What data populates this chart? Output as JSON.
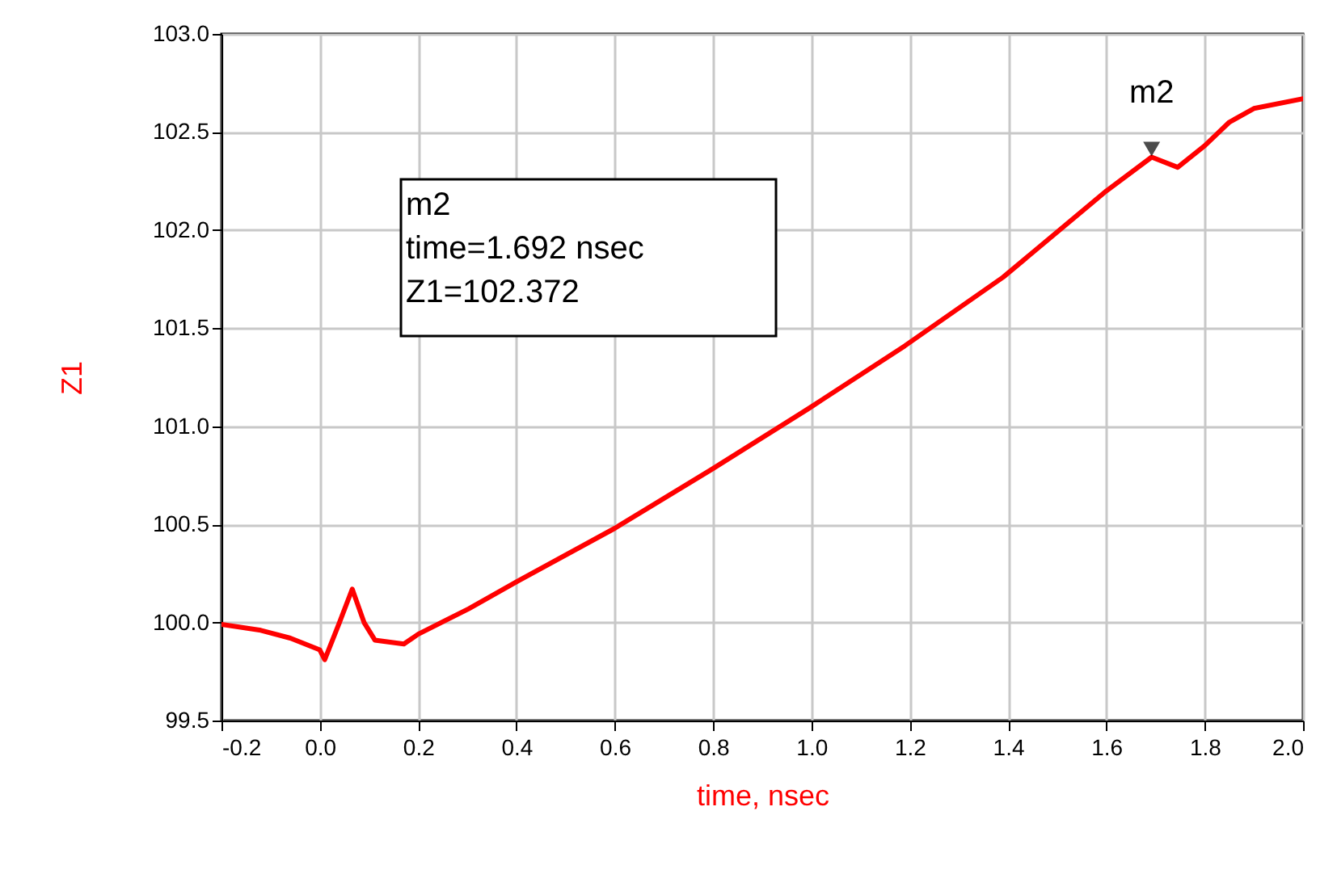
{
  "chart_data": {
    "type": "line",
    "xlabel": "time, nsec",
    "ylabel": "Z1",
    "x": [
      -0.2,
      -0.12,
      -0.06,
      0.0,
      0.01,
      0.04,
      0.066,
      0.09,
      0.112,
      0.171,
      0.2,
      0.303,
      0.402,
      0.6,
      0.797,
      0.994,
      1.19,
      1.39,
      1.6,
      1.692,
      1.745,
      1.8,
      1.85,
      1.9,
      2.0
    ],
    "series": [
      {
        "color": "#ff0000",
        "values": [
          99.99,
          99.96,
          99.92,
          99.86,
          99.81,
          100.0,
          100.17,
          100.0,
          99.91,
          99.89,
          99.94,
          100.07,
          100.21,
          100.48,
          100.78,
          101.09,
          101.41,
          101.76,
          102.2,
          102.372,
          102.32,
          102.43,
          102.55,
          102.62,
          102.67
        ]
      }
    ],
    "xlim": [
      -0.2,
      2.0
    ],
    "xticks": [
      {
        "value": -0.2,
        "label": "-0.2"
      },
      {
        "value": 0,
        "label": "0.0"
      },
      {
        "value": 0.2,
        "label": "0.2"
      },
      {
        "value": 0.4,
        "label": "0.4"
      },
      {
        "value": 0.6,
        "label": "0.6"
      },
      {
        "value": 0.8,
        "label": "0.8"
      },
      {
        "value": 1,
        "label": "1.0"
      },
      {
        "value": 1.2,
        "label": "1.2"
      },
      {
        "value": 1.4,
        "label": "1.4"
      },
      {
        "value": 1.6,
        "label": "1.6"
      },
      {
        "value": 1.8,
        "label": "1.8"
      },
      {
        "value": 2,
        "label": "2.0"
      }
    ],
    "ylim": [
      99.5,
      103.0
    ],
    "yticks": [
      {
        "value": 99.5,
        "label": "99.5"
      },
      {
        "value": 100,
        "label": "100.0"
      },
      {
        "value": 100.5,
        "label": "100.5"
      },
      {
        "value": 101,
        "label": "101.0"
      },
      {
        "value": 101.5,
        "label": "101.5"
      },
      {
        "value": 102,
        "label": "102.0"
      },
      {
        "value": 102.5,
        "label": "102.5"
      },
      {
        "value": 103,
        "label": "103.0"
      }
    ],
    "grid": true,
    "line_style": "solid",
    "annotations": [
      {
        "text": "m2",
        "x": 1.692,
        "y": 102.372
      },
      "m2\ntime=1.692 nsec\nZ1=102.372"
    ]
  }
}
